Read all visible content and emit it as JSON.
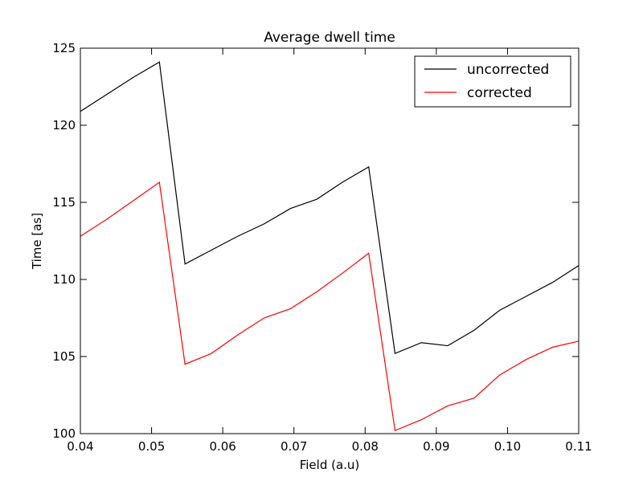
{
  "chart_data": {
    "type": "line",
    "title": "Average dwell time",
    "xlabel": "Field (a.u)",
    "ylabel": "Time [as]",
    "xlim": [
      0.04,
      0.11
    ],
    "ylim": [
      100,
      125
    ],
    "xticks": [
      "0.04",
      "0.05",
      "0.06",
      "0.07",
      "0.08",
      "0.09",
      "0.10",
      "0.11"
    ],
    "yticks": [
      "100",
      "105",
      "110",
      "115",
      "120",
      "125"
    ],
    "grid": false,
    "legend_position": "top-right",
    "x": [
      0.04,
      0.0437,
      0.0474,
      0.0511,
      0.0547,
      0.0584,
      0.0621,
      0.0658,
      0.0695,
      0.0732,
      0.0768,
      0.0805,
      0.0842,
      0.0879,
      0.0916,
      0.0953,
      0.0989,
      0.1026,
      0.1063,
      0.11
    ],
    "series": [
      {
        "name": "uncorrected",
        "color": "#000000",
        "values": [
          120.9,
          122.0,
          123.1,
          124.1,
          111.0,
          111.9,
          112.8,
          113.6,
          114.6,
          115.2,
          116.3,
          117.3,
          105.2,
          105.9,
          105.7,
          106.7,
          108.0,
          108.9,
          109.8,
          110.9
        ]
      },
      {
        "name": "corrected",
        "color": "#ff0000",
        "values": [
          112.8,
          113.9,
          115.1,
          116.3,
          104.5,
          105.2,
          106.4,
          107.5,
          108.1,
          109.2,
          110.4,
          111.7,
          100.2,
          100.9,
          101.8,
          102.3,
          103.8,
          104.8,
          105.6,
          106.0
        ]
      }
    ]
  }
}
